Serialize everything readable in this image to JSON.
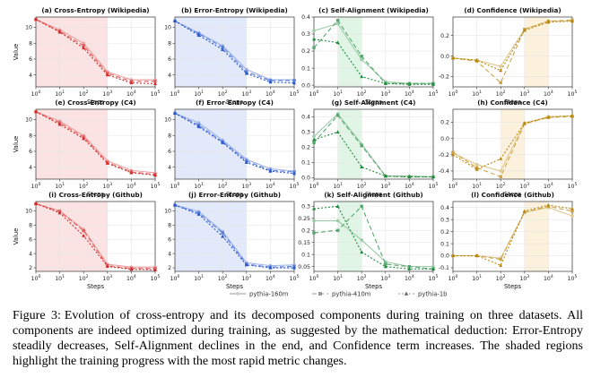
{
  "caption": {
    "label": "Figure 3:",
    "text": "Evolution of cross-entropy and its decomposed components during training on three datasets. All components are indeed optimized during training, as suggested by the mathematical deduction: Error-Entropy steadily decreases, Self-Alignment declines in the end, and Confidence term increases. The shaded regions highlight the training progress with the most rapid metric changes."
  },
  "legend": {
    "entries": [
      {
        "label": "pythia-160m",
        "marker": "circle",
        "linestyle": "solid"
      },
      {
        "label": "pythia-410m",
        "marker": "square",
        "linestyle": "dashed"
      },
      {
        "label": "pythia-1b",
        "marker": "triangle",
        "linestyle": "dotted"
      }
    ]
  },
  "colors": {
    "cross_entropy": "#d42a2a",
    "error_entropy": "#2755c9",
    "self_alignment": "#1e8a3c",
    "confidence": "#b8860b"
  },
  "chart_data": [
    {
      "type": "line",
      "title": "(a) Cross-Entropy (Wikipedia)",
      "metric": "cross_entropy",
      "xlabel": "Steps",
      "ylabel": "Value",
      "xscale": "log",
      "x": [
        1,
        10,
        100,
        1000,
        10000,
        100000
      ],
      "xticks": [
        "10^0",
        "10^1",
        "10^2",
        "10^3",
        "10^4",
        "10^5"
      ],
      "ylim": [
        2.5,
        11.3
      ],
      "yticks": [
        4,
        6,
        8,
        10
      ],
      "shade": [
        1,
        1000
      ],
      "series": [
        {
          "name": "pythia-160m",
          "values": [
            11.0,
            9.7,
            8.0,
            4.4,
            3.4,
            3.4
          ]
        },
        {
          "name": "pythia-410m",
          "values": [
            11.0,
            9.5,
            7.7,
            4.2,
            3.2,
            3.2
          ]
        },
        {
          "name": "pythia-1b",
          "values": [
            11.0,
            9.4,
            7.4,
            4.0,
            3.0,
            2.9
          ]
        }
      ]
    },
    {
      "type": "line",
      "title": "(b) Error-Entropy (Wikipedia)",
      "metric": "error_entropy",
      "xlabel": "Steps",
      "ylabel": "",
      "xscale": "log",
      "x": [
        1,
        10,
        100,
        1000,
        10000,
        100000
      ],
      "xticks": [
        "10^0",
        "10^1",
        "10^2",
        "10^3",
        "10^4",
        "10^5"
      ],
      "ylim": [
        2.5,
        11.3
      ],
      "yticks": [
        4,
        6,
        8,
        10
      ],
      "shade": [
        1,
        1000
      ],
      "series": [
        {
          "name": "pythia-160m",
          "values": [
            10.8,
            9.3,
            7.7,
            4.7,
            3.4,
            3.4
          ]
        },
        {
          "name": "pythia-410m",
          "values": [
            10.8,
            9.2,
            7.5,
            4.4,
            3.3,
            3.3
          ]
        },
        {
          "name": "pythia-1b",
          "values": [
            10.8,
            9.0,
            7.2,
            4.2,
            3.1,
            3.0
          ]
        }
      ]
    },
    {
      "type": "line",
      "title": "(c) Self-Alignment (Wikipedia)",
      "metric": "self_alignment",
      "xlabel": "Steps",
      "ylabel": "",
      "xscale": "log",
      "x": [
        1,
        10,
        100,
        1000,
        10000,
        100000
      ],
      "xticks": [
        "10^0",
        "10^1",
        "10^2",
        "10^3",
        "10^4",
        "10^5"
      ],
      "ylim": [
        -0.01,
        0.4
      ],
      "yticks": [
        0.0,
        0.1,
        0.2,
        0.3,
        0.4
      ],
      "shade": [
        10,
        100
      ],
      "series": [
        {
          "name": "pythia-160m",
          "values": [
            0.32,
            0.36,
            0.15,
            0.02,
            0.01,
            0.01
          ]
        },
        {
          "name": "pythia-410m",
          "values": [
            0.22,
            0.38,
            0.17,
            0.01,
            0.01,
            0.01
          ]
        },
        {
          "name": "pythia-1b",
          "values": [
            0.27,
            0.25,
            0.05,
            0.01,
            0.005,
            0.005
          ]
        }
      ]
    },
    {
      "type": "line",
      "title": "(d) Confidence (Wikipedia)",
      "metric": "confidence",
      "xlabel": "Steps",
      "ylabel": "",
      "xscale": "log",
      "x": [
        1,
        10,
        100,
        1000,
        10000,
        100000
      ],
      "xticks": [
        "10^0",
        "10^1",
        "10^2",
        "10^3",
        "10^4",
        "10^5"
      ],
      "ylim": [
        -0.3,
        0.38
      ],
      "yticks": [
        -0.2,
        0.0,
        0.2
      ],
      "shade": [
        1000,
        10000
      ],
      "series": [
        {
          "name": "pythia-160m",
          "values": [
            -0.02,
            -0.04,
            -0.1,
            0.26,
            0.34,
            0.34
          ]
        },
        {
          "name": "pythia-410m",
          "values": [
            -0.02,
            -0.05,
            -0.26,
            0.26,
            0.34,
            0.35
          ]
        },
        {
          "name": "pythia-1b",
          "values": [
            -0.02,
            -0.04,
            -0.14,
            0.25,
            0.33,
            0.34
          ]
        }
      ]
    },
    {
      "type": "line",
      "title": "(e) Cross-Entropy (C4)",
      "metric": "cross_entropy",
      "xlabel": "Steps",
      "ylabel": "Value",
      "xscale": "log",
      "x": [
        1,
        10,
        100,
        1000,
        10000,
        100000
      ],
      "xticks": [
        "10^0",
        "10^1",
        "10^2",
        "10^3",
        "10^4",
        "10^5"
      ],
      "ylim": [
        2.5,
        11.3
      ],
      "yticks": [
        4,
        6,
        8,
        10
      ],
      "shade": [
        1,
        1000
      ],
      "series": [
        {
          "name": "pythia-160m",
          "values": [
            11.0,
            9.8,
            8.0,
            4.8,
            3.6,
            3.3
          ]
        },
        {
          "name": "pythia-410m",
          "values": [
            11.0,
            9.6,
            7.8,
            4.6,
            3.4,
            3.1
          ]
        },
        {
          "name": "pythia-1b",
          "values": [
            11.0,
            9.4,
            7.6,
            4.5,
            3.3,
            3.0
          ]
        }
      ]
    },
    {
      "type": "line",
      "title": "(f) Error-Entropy (C4)",
      "metric": "error_entropy",
      "xlabel": "Steps",
      "ylabel": "",
      "xscale": "log",
      "x": [
        1,
        10,
        100,
        1000,
        10000,
        100000
      ],
      "xticks": [
        "10^0",
        "10^1",
        "10^2",
        "10^3",
        "10^4",
        "10^5"
      ],
      "ylim": [
        2.5,
        11.3
      ],
      "yticks": [
        4,
        6,
        8,
        10
      ],
      "shade": [
        1,
        1000
      ],
      "series": [
        {
          "name": "pythia-160m",
          "values": [
            10.8,
            9.6,
            7.4,
            5.0,
            3.8,
            3.5
          ]
        },
        {
          "name": "pythia-410m",
          "values": [
            10.8,
            9.3,
            7.2,
            4.8,
            3.6,
            3.4
          ]
        },
        {
          "name": "pythia-1b",
          "values": [
            10.8,
            9.1,
            7.1,
            4.6,
            3.5,
            3.2
          ]
        }
      ]
    },
    {
      "type": "line",
      "title": "(g) Self-Alignment (C4)",
      "metric": "self_alignment",
      "xlabel": "Steps",
      "ylabel": "",
      "xscale": "log",
      "x": [
        1,
        10,
        100,
        1000,
        10000,
        100000
      ],
      "xticks": [
        "10^0",
        "10^1",
        "10^2",
        "10^3",
        "10^4",
        "10^5"
      ],
      "ylim": [
        -0.01,
        0.45
      ],
      "yticks": [
        0.0,
        0.1,
        0.2,
        0.3,
        0.4
      ],
      "shade": [
        10,
        100
      ],
      "series": [
        {
          "name": "pythia-160m",
          "values": [
            0.27,
            0.42,
            0.22,
            0.01,
            0.01,
            0.005
          ]
        },
        {
          "name": "pythia-410m",
          "values": [
            0.23,
            0.41,
            0.21,
            0.01,
            0.005,
            0.005
          ]
        },
        {
          "name": "pythia-1b",
          "values": [
            0.25,
            0.3,
            0.07,
            0.01,
            0.005,
            0.005
          ]
        }
      ]
    },
    {
      "type": "line",
      "title": "(h) Confidence (C4)",
      "metric": "confidence",
      "xlabel": "Steps",
      "ylabel": "",
      "xscale": "log",
      "x": [
        1,
        10,
        100,
        1000,
        10000,
        100000
      ],
      "xticks": [
        "10^0",
        "10^1",
        "10^2",
        "10^3",
        "10^4",
        "10^5"
      ],
      "ylim": [
        -0.5,
        0.36
      ],
      "yticks": [
        -0.4,
        -0.2,
        0.0,
        0.2
      ],
      "shade": [
        100,
        1000
      ],
      "series": [
        {
          "name": "pythia-160m",
          "values": [
            -0.18,
            -0.32,
            -0.4,
            0.19,
            0.27,
            0.28
          ]
        },
        {
          "name": "pythia-410m",
          "values": [
            -0.17,
            -0.36,
            -0.47,
            0.18,
            0.26,
            0.27
          ]
        },
        {
          "name": "pythia-1b",
          "values": [
            -0.2,
            -0.38,
            -0.25,
            0.19,
            0.26,
            0.28
          ]
        }
      ]
    },
    {
      "type": "line",
      "title": "(i) Cross-Entropy (Github)",
      "metric": "cross_entropy",
      "xlabel": "Steps",
      "ylabel": "Value",
      "xscale": "log",
      "x": [
        1,
        10,
        100,
        1000,
        10000,
        100000
      ],
      "xticks": [
        "10^0",
        "10^1",
        "10^2",
        "10^3",
        "10^4",
        "10^5"
      ],
      "ylim": [
        1.5,
        11.3
      ],
      "yticks": [
        2,
        4,
        6,
        8,
        10
      ],
      "shade": [
        1,
        1000
      ],
      "series": [
        {
          "name": "pythia-160m",
          "values": [
            11.0,
            10.0,
            7.4,
            2.5,
            2.1,
            2.1
          ]
        },
        {
          "name": "pythia-410m",
          "values": [
            11.0,
            9.9,
            7.2,
            2.3,
            1.9,
            1.9
          ]
        },
        {
          "name": "pythia-1b",
          "values": [
            11.0,
            9.7,
            6.5,
            2.2,
            1.8,
            1.7
          ]
        }
      ]
    },
    {
      "type": "line",
      "title": "(j) Error-Entropy (Github)",
      "metric": "error_entropy",
      "xlabel": "Steps",
      "ylabel": "",
      "xscale": "log",
      "x": [
        1,
        10,
        100,
        1000,
        10000,
        100000
      ],
      "xticks": [
        "10^0",
        "10^1",
        "10^2",
        "10^3",
        "10^4",
        "10^5"
      ],
      "ylim": [
        1.5,
        11.3
      ],
      "yticks": [
        2,
        4,
        6,
        8,
        10
      ],
      "shade": [
        1,
        1000
      ],
      "series": [
        {
          "name": "pythia-160m",
          "values": [
            10.8,
            9.9,
            7.1,
            2.7,
            2.3,
            2.4
          ]
        },
        {
          "name": "pythia-410m",
          "values": [
            10.8,
            9.7,
            6.9,
            2.5,
            2.1,
            2.2
          ]
        },
        {
          "name": "pythia-1b",
          "values": [
            10.8,
            9.5,
            6.4,
            2.4,
            2.0,
            2.0
          ]
        }
      ]
    },
    {
      "type": "line",
      "title": "(k) Self-Alignment (Github)",
      "metric": "self_alignment",
      "xlabel": "Steps",
      "ylabel": "",
      "xscale": "log",
      "x": [
        1,
        10,
        100,
        1000,
        10000,
        100000
      ],
      "xticks": [
        "10^0",
        "10^1",
        "10^2",
        "10^3",
        "10^4",
        "10^5"
      ],
      "ylim": [
        0.03,
        0.32
      ],
      "yticks": [
        0.05,
        0.1,
        0.15,
        0.2,
        0.25,
        0.3
      ],
      "shade": [
        10,
        100
      ],
      "series": [
        {
          "name": "pythia-160m",
          "values": [
            0.24,
            0.24,
            0.16,
            0.07,
            0.05,
            0.05
          ]
        },
        {
          "name": "pythia-410m",
          "values": [
            0.19,
            0.2,
            0.3,
            0.06,
            0.05,
            0.04
          ]
        },
        {
          "name": "pythia-1b",
          "values": [
            0.29,
            0.3,
            0.11,
            0.05,
            0.04,
            0.04
          ]
        }
      ]
    },
    {
      "type": "line",
      "title": "(l) Confidence (Github)",
      "metric": "confidence",
      "xlabel": "Steps",
      "ylabel": "",
      "xscale": "log",
      "x": [
        1,
        10,
        100,
        1000,
        10000,
        100000
      ],
      "xticks": [
        "10^0",
        "10^1",
        "10^2",
        "10^3",
        "10^4",
        "10^5"
      ],
      "ylim": [
        -0.13,
        0.45
      ],
      "yticks": [
        -0.1,
        0.0,
        0.1,
        0.2,
        0.3,
        0.4
      ],
      "shade": [
        1000,
        10000
      ],
      "series": [
        {
          "name": "pythia-160m",
          "values": [
            0.0,
            0.0,
            -0.02,
            0.36,
            0.4,
            0.33
          ]
        },
        {
          "name": "pythia-410m",
          "values": [
            0.0,
            0.0,
            -0.03,
            0.36,
            0.41,
            0.37
          ]
        },
        {
          "name": "pythia-1b",
          "values": [
            0.0,
            0.0,
            -0.08,
            0.37,
            0.42,
            0.39
          ]
        }
      ]
    }
  ]
}
